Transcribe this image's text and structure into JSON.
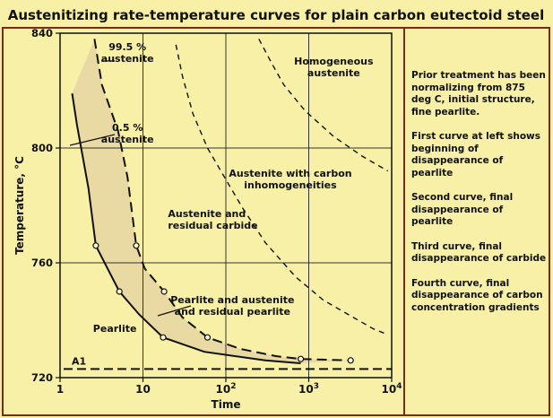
{
  "chart_data": {
    "type": "line",
    "title": "Austenitizing rate-temperature curves for plain carbon eutectoid steel",
    "xlabel": "Time",
    "ylabel": "Temperature, °C",
    "xscale": "log",
    "xlim": [
      1,
      10000
    ],
    "ylim": [
      720,
      840
    ],
    "x_ticks": [
      {
        "value": 1,
        "label": "1"
      },
      {
        "value": 10,
        "label": "10"
      },
      {
        "value": 100,
        "label": "10",
        "sup": "2"
      },
      {
        "value": 1000,
        "label": "10",
        "sup": "3"
      },
      {
        "value": 10000,
        "label": "10",
        "sup": "4"
      }
    ],
    "y_ticks": [
      720,
      760,
      800,
      840
    ],
    "grid": true,
    "reference_line": {
      "label": "A1",
      "y": 723
    },
    "series": [
      {
        "name": "0.5 % austenite",
        "style": "solid",
        "points": [
          [
            1.4,
            819
          ],
          [
            1.6,
            808
          ],
          [
            2.2,
            786
          ],
          [
            2.7,
            766
          ],
          [
            5.2,
            750
          ],
          [
            9,
            742
          ],
          [
            17.5,
            734
          ],
          [
            55,
            729
          ],
          [
            300,
            726
          ],
          [
            800,
            725
          ]
        ]
      },
      {
        "name": "99.5 % austenite",
        "style": "dashed",
        "points": [
          [
            2.6,
            838
          ],
          [
            3.2,
            822
          ],
          [
            5,
            806
          ],
          [
            6.5,
            790
          ],
          [
            8.3,
            766
          ],
          [
            10.5,
            758
          ],
          [
            18,
            750
          ],
          [
            30,
            741
          ],
          [
            60,
            734
          ],
          [
            150,
            730
          ],
          [
            400,
            727.5
          ],
          [
            800,
            726.5
          ],
          [
            3200,
            726
          ]
        ]
      },
      {
        "name": "",
        "style": "dashed",
        "points": [
          [
            25,
            836
          ],
          [
            30,
            825
          ],
          [
            40,
            812
          ],
          [
            60,
            800
          ],
          [
            100,
            789
          ],
          [
            160,
            779
          ],
          [
            300,
            767
          ],
          [
            700,
            755
          ],
          [
            1500,
            747
          ],
          [
            3000,
            742
          ],
          [
            6000,
            737
          ],
          [
            9000,
            735
          ]
        ]
      },
      {
        "name": "",
        "style": "dashed",
        "points": [
          [
            250,
            838
          ],
          [
            350,
            830
          ],
          [
            500,
            822
          ],
          [
            900,
            813
          ],
          [
            2000,
            804
          ],
          [
            4500,
            797
          ],
          [
            9000,
            792
          ]
        ]
      }
    ],
    "markers": [
      [
        2.7,
        766
      ],
      [
        8.3,
        766
      ],
      [
        5.2,
        750
      ],
      [
        18,
        750
      ],
      [
        17.5,
        734
      ],
      [
        60,
        734
      ],
      [
        800,
        726.5
      ],
      [
        3200,
        726
      ]
    ],
    "annotations": [
      {
        "text": "99.5 %\naustenite",
        "x": 6.5,
        "y": 834
      },
      {
        "text": "0.5 %\naustenite",
        "x": 6.5,
        "y": 806
      },
      {
        "text": "Homogeneous\naustenite",
        "x": 2000,
        "y": 829
      },
      {
        "text": "Austenite with carbon\ninhomogeneities",
        "x": 600,
        "y": 790
      },
      {
        "text": "Austenite and\nresidual carbide",
        "x": 20,
        "y": 776
      },
      {
        "text": "Pearlite and austenite\nand residual pearlite",
        "x": 120,
        "y": 746
      },
      {
        "text": "Pearlite",
        "x": 2.5,
        "y": 736
      }
    ]
  },
  "notes": [
    "Prior treatment has been normalizing from 875 deg C, initial structure, fine pearlite.",
    "First curve at left shows beginning of disappearance of pearlite",
    "Second curve, final disappearance of pearlite",
    "Third curve, final disappearance of carbide",
    "Fourth curve, final disappearance of carbon concentration gradients"
  ],
  "colors": {
    "background": "#f7f0a6",
    "border": "#7a2a12",
    "band": "#e9d9a3",
    "ink": "#111111"
  }
}
